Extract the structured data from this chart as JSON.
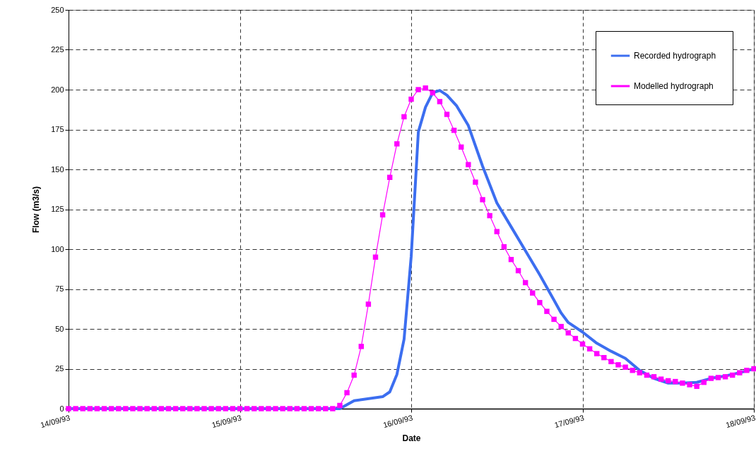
{
  "chart_data": {
    "type": "line",
    "xlabel": "Date",
    "ylabel": "Flow (m3/s)",
    "xlim": [
      "1993-09-14T00:00",
      "1993-09-18T00:00"
    ],
    "xticks": [
      {
        "value": "1993-09-14T00:00",
        "label": "14/09/93"
      },
      {
        "value": "1993-09-15T00:00",
        "label": "15/09/93"
      },
      {
        "value": "1993-09-16T00:00",
        "label": "16/09/93"
      },
      {
        "value": "1993-09-17T00:00",
        "label": "17/09/93"
      },
      {
        "value": "1993-09-18T00:00",
        "label": "18/09/93"
      }
    ],
    "ylim": [
      0,
      250
    ],
    "yticks": [
      0,
      25,
      50,
      75,
      100,
      125,
      150,
      175,
      200,
      225,
      250
    ],
    "grid": true,
    "legend": "top right",
    "series": [
      {
        "name": "Recorded  hydrograph",
        "color": "#3c6ef0",
        "marker": "none",
        "line_style": "solid",
        "x": [
          "1993-09-14T00:00",
          "1993-09-15T14:00",
          "1993-09-15T16:00",
          "1993-09-15T20:00",
          "1993-09-15T21:00",
          "1993-09-15T22:00",
          "1993-09-15T23:00",
          "1993-09-16T00:00",
          "1993-09-16T01:00",
          "1993-09-16T02:00",
          "1993-09-16T03:00",
          "1993-09-16T04:00",
          "1993-09-16T05:00",
          "1993-09-16T06:20",
          "1993-09-16T08:00",
          "1993-09-16T10:00",
          "1993-09-16T12:00",
          "1993-09-16T14:00",
          "1993-09-16T16:00",
          "1993-09-16T18:00",
          "1993-09-16T20:00",
          "1993-09-16T21:00",
          "1993-09-16T22:00",
          "1993-09-17T00:00",
          "1993-09-17T02:00",
          "1993-09-17T04:00",
          "1993-09-17T06:00",
          "1993-09-17T08:00",
          "1993-09-17T10:00",
          "1993-09-17T12:00",
          "1993-09-17T14:00",
          "1993-09-17T16:00",
          "1993-09-17T18:00",
          "1993-09-17T20:00",
          "1993-09-17T22:00",
          "1993-09-18T00:00"
        ],
        "values": [
          0,
          0,
          5,
          7.5,
          10.5,
          21.5,
          43.5,
          95.5,
          173.5,
          189,
          198,
          199.5,
          196.5,
          190,
          177.5,
          152,
          129,
          114,
          99,
          84,
          68,
          60,
          54,
          48,
          41,
          36,
          31.5,
          24,
          19,
          16,
          16,
          16.5,
          19,
          20.5,
          22.5,
          25
        ]
      },
      {
        "name": "Modelled hydrograph",
        "color": "#ff00ff",
        "marker": "square",
        "line_style": "solid",
        "x": [
          "1993-09-14T00:00",
          "1993-09-14T01:00",
          "1993-09-14T02:00",
          "1993-09-14T03:00",
          "1993-09-14T04:00",
          "1993-09-14T05:00",
          "1993-09-14T06:00",
          "1993-09-14T07:00",
          "1993-09-14T08:00",
          "1993-09-14T09:00",
          "1993-09-14T10:00",
          "1993-09-14T11:00",
          "1993-09-14T12:00",
          "1993-09-14T13:00",
          "1993-09-14T14:00",
          "1993-09-14T15:00",
          "1993-09-14T16:00",
          "1993-09-14T17:00",
          "1993-09-14T18:00",
          "1993-09-14T19:00",
          "1993-09-14T20:00",
          "1993-09-14T21:00",
          "1993-09-14T22:00",
          "1993-09-14T23:00",
          "1993-09-15T00:00",
          "1993-09-15T01:00",
          "1993-09-15T02:00",
          "1993-09-15T03:00",
          "1993-09-15T04:00",
          "1993-09-15T05:00",
          "1993-09-15T06:00",
          "1993-09-15T07:00",
          "1993-09-15T08:00",
          "1993-09-15T09:00",
          "1993-09-15T10:00",
          "1993-09-15T11:00",
          "1993-09-15T12:00",
          "1993-09-15T13:00",
          "1993-09-15T14:00",
          "1993-09-15T15:00",
          "1993-09-15T16:00",
          "1993-09-15T17:00",
          "1993-09-15T18:00",
          "1993-09-15T19:00",
          "1993-09-15T20:00",
          "1993-09-15T21:00",
          "1993-09-15T22:00",
          "1993-09-15T23:00",
          "1993-09-16T00:00",
          "1993-09-16T01:00",
          "1993-09-16T02:00",
          "1993-09-16T03:00",
          "1993-09-16T04:00",
          "1993-09-16T05:00",
          "1993-09-16T06:00",
          "1993-09-16T07:00",
          "1993-09-16T08:00",
          "1993-09-16T09:00",
          "1993-09-16T10:00",
          "1993-09-16T11:00",
          "1993-09-16T12:00",
          "1993-09-16T13:00",
          "1993-09-16T14:00",
          "1993-09-16T15:00",
          "1993-09-16T16:00",
          "1993-09-16T17:00",
          "1993-09-16T18:00",
          "1993-09-16T19:00",
          "1993-09-16T20:00",
          "1993-09-16T21:00",
          "1993-09-16T22:00",
          "1993-09-16T23:00",
          "1993-09-17T00:00",
          "1993-09-17T01:00",
          "1993-09-17T02:00",
          "1993-09-17T03:00",
          "1993-09-17T04:00",
          "1993-09-17T05:00",
          "1993-09-17T06:00",
          "1993-09-17T07:00",
          "1993-09-17T08:00",
          "1993-09-17T09:00",
          "1993-09-17T10:00",
          "1993-09-17T11:00",
          "1993-09-17T12:00",
          "1993-09-17T13:00",
          "1993-09-17T14:00",
          "1993-09-17T15:00",
          "1993-09-17T16:00",
          "1993-09-17T17:00",
          "1993-09-17T18:00",
          "1993-09-17T19:00",
          "1993-09-17T20:00",
          "1993-09-17T21:00",
          "1993-09-17T22:00",
          "1993-09-17T23:00",
          "1993-09-18T00:00"
        ],
        "values": [
          0,
          0,
          0,
          0,
          0,
          0,
          0,
          0,
          0,
          0,
          0,
          0,
          0,
          0,
          0,
          0,
          0,
          0,
          0,
          0,
          0,
          0,
          0,
          0,
          0,
          0,
          0,
          0,
          0,
          0,
          0,
          0,
          0,
          0,
          0,
          0,
          0,
          0,
          2,
          10,
          21,
          39,
          65.5,
          95,
          121.5,
          145,
          166,
          183,
          194,
          200,
          201,
          198,
          192.5,
          184.5,
          174.5,
          164,
          153,
          142,
          131,
          121,
          111,
          101.5,
          93.5,
          86.5,
          79,
          72.5,
          66.5,
          61,
          56,
          51.5,
          47.5,
          44,
          40.5,
          37.5,
          34.5,
          32,
          29.5,
          27.5,
          26,
          24,
          22.5,
          21,
          20,
          18.5,
          17.5,
          17,
          16,
          15,
          14,
          16.5,
          19,
          19.5,
          20,
          21,
          22.5,
          24,
          25
        ]
      }
    ]
  }
}
